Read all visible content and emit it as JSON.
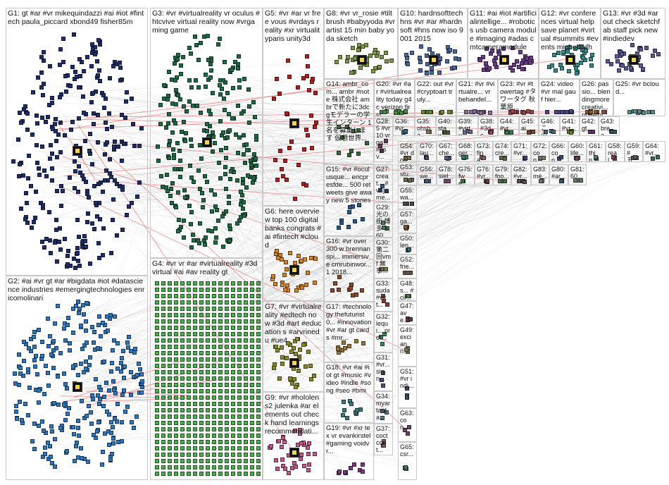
{
  "groups": [
    {
      "id": "G1",
      "label": "G1: gt #ar #vr mikequindazzi #ai #iot #fintech paula_piccard xbond49 fisher85m",
      "color": "#1f2f6b"
    },
    {
      "id": "G2",
      "label": "G2: #ai #vr gt #ar #bigdata #iot #datascience industries #emergingtechnologies enricomolinari",
      "color": "#2f78c0"
    },
    {
      "id": "G3",
      "label": "G3: #vr #virtualreality vr oculus #htcvive virtual reality now #vrgaming game",
      "color": "#1f6b45"
    },
    {
      "id": "G4",
      "label": "G4: #vr vr #ar #virtualreality #3d virtual #ai #av reality gt",
      "color": "#2e9a3a"
    },
    {
      "id": "G5",
      "label": "G5: #vr #ar vr free vous #vrdays reality #xr virtualityparis unity3d",
      "color": "#b32020"
    },
    {
      "id": "G6",
      "label": "G6: here overview top 100 digital banks congrats #ai #fintech #cloud",
      "color": "#d8822a"
    },
    {
      "id": "G7",
      "label": "G7: #vr #virtualreality #edtech now #3d #art #education s #arvrinedu #ue4",
      "color": "#8a8a2a"
    },
    {
      "id": "G8",
      "label": "G8: #vr vr_rosie #tiltbrush #babyyoda #vrartist 15 min baby yoda sketch",
      "color": "#7a9a4a"
    },
    {
      "id": "G9",
      "label": "G9: #vr #hololens2 julenka #ar elements out check hand learnings recommendati...",
      "color": "#c25a8a"
    },
    {
      "id": "G10",
      "label": "G10: hardnsofttech hns #vr #ar #hardnsoft #hns now iso 9001 2015",
      "color": "#4a6a9a"
    },
    {
      "id": "G11",
      "label": "G11: #ai #iot #artificialintellige... #robotics usb camera module #imaging #adas cmtcameramodule",
      "color": "#6a3a8a"
    },
    {
      "id": "G12",
      "label": "G12: #vr conferences virtual help save planet #virtual #summits #events michelledh",
      "color": "#3a8a8a"
    },
    {
      "id": "G13",
      "label": "G13: #vr #3d #ar out check sketchfab staff pick new #indiedev",
      "color": "#5a5a9a"
    },
    {
      "id": "G14",
      "label": "G14: ambr_com... ambr #note 株式会社 ambrで新たに3dcgモデラーの学生インターン 1名を募集しま す 仮想世界...",
      "color": "#3a6a3a"
    },
    {
      "id": "G15",
      "label": "G15: #vr #oculusque... ericpresfde... 500 retweets give away new 5 stories",
      "color": "#2a5a8a"
    },
    {
      "id": "G16",
      "label": "G16: #vr over 300 w brennanspi... immersive cmrubinwor... 1 2018...",
      "color": "#8a4a2a"
    },
    {
      "id": "G17",
      "label": "G17: #technology thefuturist0... #innovation #vr #ar gt cards #mr...",
      "color": "#9a7a3a"
    },
    {
      "id": "G18",
      "label": "G18: #vr #ai #iot gt #music #video #indie #song #seo #bmi",
      "color": "#3a7a7a"
    },
    {
      "id": "G19",
      "label": "G19: #vr #xr tex vr evankirstel #gaming voidvr...",
      "color": "#7a3a7a"
    },
    {
      "id": "G20",
      "label": "G20: #vr #ar #virtualreality today g4c verizon first...",
      "color": "#4a8a4a"
    },
    {
      "id": "G21",
      "label": "G21: #vr #virtualre... vr behandel...",
      "color": "#8a6a9a"
    },
    {
      "id": "G22",
      "label": "G22: out #vr #cryptoart truly...",
      "color": "#6a8a3a"
    },
    {
      "id": "G23",
      "label": "G23: #vr #towertag #タワータグ 秋葉原...",
      "color": "#9a4a4a"
    },
    {
      "id": "G24",
      "label": "G24: video #vr mal gauf hier...",
      "color": "#4a4a8a"
    },
    {
      "id": "G25",
      "label": "G25: #vr bcloud...",
      "color": "#5a8a8a"
    },
    {
      "id": "G26",
      "label": "G26: passio... blendingmore creativi... novelty...",
      "color": "#8a5a3a"
    },
    {
      "id": "G27",
      "label": "G27: creat... #vr jame... begi...",
      "color": "#3a5a7a"
    },
    {
      "id": "G28",
      "label": "G28: 5 #vr 10 vrga... #psv...",
      "color": "#6a3a5a"
    },
    {
      "id": "G29",
      "label": "G29: 光の街 博多 360...",
      "color": "#4a7a5a"
    },
    {
      "id": "G30",
      "label": "G30: 第二回vmf 無事...",
      "color": "#7a7a4a"
    },
    {
      "id": "G31",
      "label": "G31: #vr... sign...",
      "color": "#5a4a7a"
    },
    {
      "id": "G32",
      "label": "G32: lequi... prof...",
      "color": "#3a8a5a"
    },
    {
      "id": "G33",
      "label": "G33: suda #virt...",
      "color": "#8a3a3a"
    },
    {
      "id": "G34",
      "label": "G34: myar tauta...",
      "color": "#5a7a8a"
    },
    {
      "id": "G37",
      "label": "G37: coct cont...",
      "color": "#7a5a5a"
    },
    {
      "id": "G36",
      "label": "G36: #vr...",
      "color": "#3a6a8a"
    },
    {
      "id": "G35",
      "label": "G35: ohsha...",
      "color": "#8a7a5a"
    },
    {
      "id": "G40",
      "label": "G40: stay...",
      "color": "#4a5a3a"
    },
    {
      "id": "G39",
      "label": "G39: #virtu...",
      "color": "#6a6a8a"
    },
    {
      "id": "G38",
      "label": "G38: #3dc...",
      "color": "#8a4a6a"
    },
    {
      "id": "G44",
      "label": "G44: #vr...",
      "color": "#3a7a4a"
    },
    {
      "id": "G45",
      "label": "G45: ai...",
      "color": "#7a4a3a"
    },
    {
      "id": "G46",
      "label": "G46: この...",
      "color": "#4a6a7a"
    },
    {
      "id": "G41",
      "label": "G41: #vr...",
      "color": "#6a7a3a"
    },
    {
      "id": "G42",
      "label": "G42: gt...",
      "color": "#5a3a6a"
    },
    {
      "id": "G43",
      "label": "G43: brea...",
      "color": "#3a5a5a"
    },
    {
      "id": "G54",
      "label": "G54: #vr don...",
      "color": "#7a6a4a"
    },
    {
      "id": "G70",
      "label": "G70: lau...",
      "color": "#4a4a6a"
    },
    {
      "id": "G67",
      "label": "G67: che...",
      "color": "#6a5a7a"
    },
    {
      "id": "G68",
      "label": "G68: ger...",
      "color": "#3a7a6a"
    },
    {
      "id": "G73",
      "label": "G73: fina...",
      "color": "#8a5a5a"
    },
    {
      "id": "G74",
      "label": "G74: cre...",
      "color": "#5a6a4a"
    },
    {
      "id": "G71",
      "label": "G71: #vr...",
      "color": "#4a3a7a"
    },
    {
      "id": "G72",
      "label": "G72: con...",
      "color": "#7a7a6a"
    },
    {
      "id": "G66",
      "label": "G66: con...",
      "color": "#3a4a6a"
    },
    {
      "id": "G60",
      "label": "G60: life...",
      "color": "#6a4a4a"
    },
    {
      "id": "G61",
      "label": "G61: thin...",
      "color": "#4a7a7a"
    },
    {
      "id": "G58",
      "label": "G58: real...",
      "color": "#7a3a5a"
    },
    {
      "id": "G59",
      "label": "G59: #五...",
      "color": "#5a5a5a"
    },
    {
      "id": "G64",
      "label": "G64: #vr...",
      "color": "#3a6a5a"
    },
    {
      "id": "G53",
      "label": "G53: stu...",
      "color": "#6a6a4a"
    },
    {
      "id": "G56",
      "label": "G56: we...",
      "color": "#4a5a7a"
    },
    {
      "id": "G78",
      "label": "G78: wel...",
      "color": "#7a4a6a"
    },
    {
      "id": "G75",
      "label": "G75: fwe...",
      "color": "#3a7a3a"
    },
    {
      "id": "G76",
      "label": "G76: #vr...",
      "color": "#6a3a3a"
    },
    {
      "id": "G79",
      "label": "G79: foo...",
      "color": "#4a6a4a"
    },
    {
      "id": "G82",
      "label": "G82: #vr...",
      "color": "#5a4a5a"
    },
    {
      "id": "G83",
      "label": "G83: mé...",
      "color": "#7a6a7a"
    },
    {
      "id": "G80",
      "label": "G80: #ar...",
      "color": "#3a5a6a"
    },
    {
      "id": "G81",
      "label": "G81: 60...",
      "color": "#6a7a6a"
    },
    {
      "id": "G55",
      "label": "G55: wa...",
      "color": "#4a4a4a"
    },
    {
      "id": "G57",
      "label": "G57: ga...",
      "color": "#7a5a3a"
    },
    {
      "id": "G50",
      "label": "G50: len...",
      "color": "#3a6a7a"
    },
    {
      "id": "G52",
      "label": "G52: frie...",
      "color": "#6a5a4a"
    },
    {
      "id": "G48",
      "label": "G48: s... #cir...",
      "color": "#4a7a4a"
    },
    {
      "id": "G47",
      "label": "G47: ave...",
      "color": "#5a3a4a"
    },
    {
      "id": "G49",
      "label": "G49: exci ann...",
      "color": "#7a7a5a"
    },
    {
      "id": "G51",
      "label": "G51: #vr indi...",
      "color": "#3a4a5a"
    },
    {
      "id": "G63",
      "label": "G63: con...",
      "color": "#6a4a6a"
    },
    {
      "id": "G65",
      "label": "G65: csr...",
      "color": "#4a6a6a"
    }
  ],
  "colors": {
    "accent": "#d33",
    "edge": "#9a9a9a",
    "border": "#c9c9c9"
  }
}
